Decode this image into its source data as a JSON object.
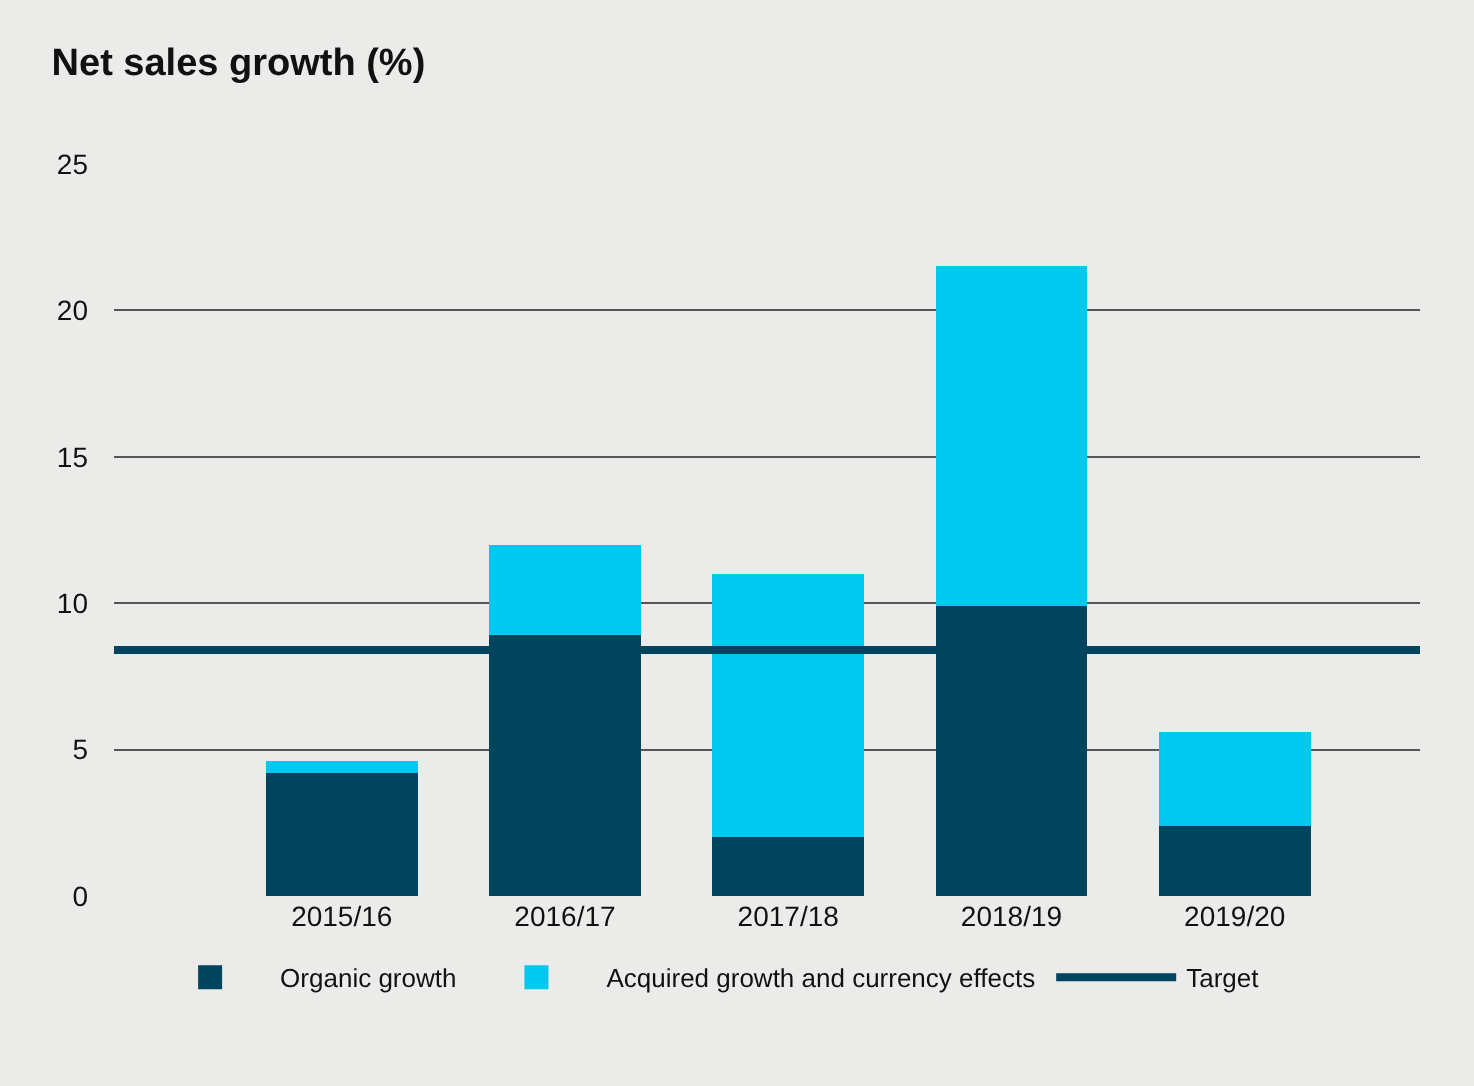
{
  "chart_data": {
    "type": "bar",
    "title": "Net sales growth (%)",
    "stacked": true,
    "categories": [
      "2015/16",
      "2016/17",
      "2017/18",
      "2018/19",
      "2019/20"
    ],
    "series": [
      {
        "name": "Organic growth",
        "color": "#00445e",
        "values": [
          4.2,
          8.9,
          2.0,
          9.9,
          2.4
        ]
      },
      {
        "name": "Acquired growth and currency effects",
        "color": "#00c8ee",
        "values": [
          0.4,
          3.1,
          9.0,
          11.6,
          3.2
        ]
      }
    ],
    "ref_lines": [
      {
        "axis": "y",
        "value": 8.4,
        "label": "Target",
        "color": "#00445e",
        "line_style": "solid"
      }
    ],
    "ylim": [
      0,
      25
    ],
    "yticks": [
      0,
      5,
      10,
      15,
      20,
      25
    ],
    "grid": "y",
    "legend": "bottom"
  }
}
